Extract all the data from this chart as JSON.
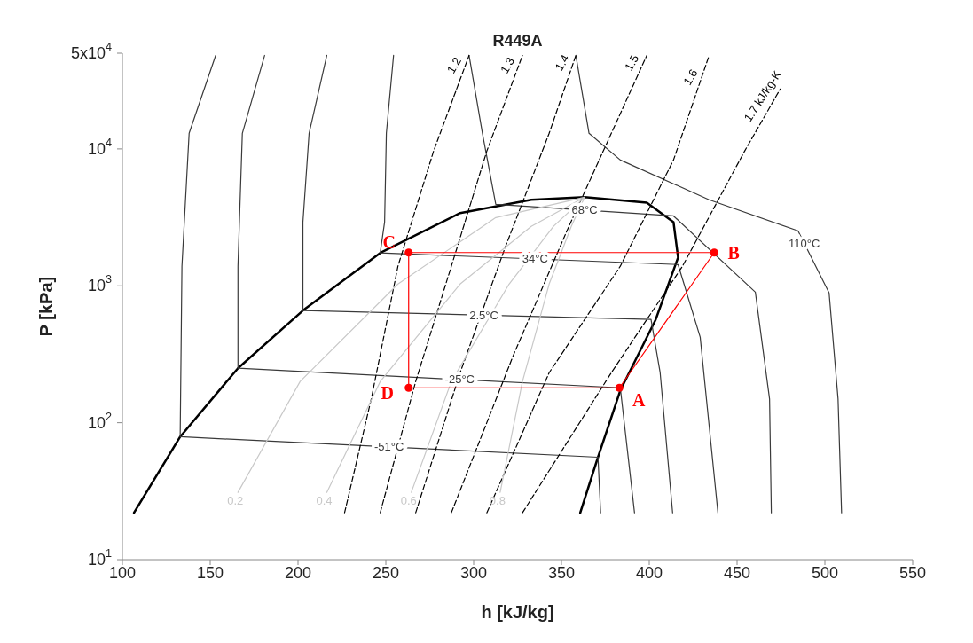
{
  "chart_data": {
    "type": "line",
    "title": "R449A",
    "xlabel": "h [kJ/kg]",
    "ylabel": "P [kPa]",
    "xlim": [
      100,
      550
    ],
    "xticks": [
      100,
      150,
      200,
      250,
      300,
      350,
      400,
      450,
      500,
      550
    ],
    "ylim": [
      10,
      50000
    ],
    "log": "y",
    "yticks": [
      {
        "value": 10,
        "label": "10$^{1}$"
      },
      {
        "value": 100,
        "label": "10$^{2}$"
      },
      {
        "value": 1000,
        "label": "10$^{3}$"
      },
      {
        "value": 10000,
        "label": "10$^{4}$"
      },
      {
        "value": 50000,
        "label": "5x10$^{4}$"
      }
    ],
    "marker": "none",
    "line_style": "solid",
    "series": [
      {
        "color": "#000000",
        "x": [
          106.6,
          132.9,
          165.8,
          202.8,
          246.8,
          292.3,
          332.8,
          363.2,
          398.6,
          413.8,
          416.4,
          403.7,
          383.5,
          370.8,
          360.7
        ],
        "values": [
          22,
          79,
          250,
          660,
          1740,
          3400,
          4250,
          4440,
          4050,
          2920,
          1610,
          568,
          172,
          56,
          22
        ]
      },
      {
        "name": "-51°C",
        "color": "#3a3a3a",
        "x": [
          153.1,
          138,
          133.9,
          132.9,
          370.8,
          372.3
        ],
        "values": [
          48200,
          13000,
          1390,
          79,
          56,
          22
        ]
      },
      {
        "name": "-25°C",
        "color": "#3a3a3a",
        "x": [
          181,
          168.3,
          165.8,
          165.8,
          383.5,
          391.6
        ],
        "values": [
          48200,
          13000,
          1390,
          250,
          180,
          22
        ]
      },
      {
        "name": "2.5°C",
        "color": "#3a3a3a",
        "x": [
          216.4,
          206.3,
          202.8,
          202.8,
          401,
          406.2,
          413.3
        ],
        "values": [
          48200,
          13000,
          2920,
          660,
          568,
          232,
          22
        ]
      },
      {
        "name": "34°C",
        "color": "#3a3a3a",
        "x": [
          254.4,
          250.3,
          249.3,
          246.8,
          416.4,
          429,
          439.1
        ],
        "values": [
          48200,
          13000,
          2920,
          1740,
          1430,
          422,
          22
        ]
      },
      {
        "name": "68°C",
        "color": "#3a3a3a",
        "x": [
          297.4,
          305,
          312.6,
          413.8,
          460.4,
          468.5,
          469.5
        ],
        "values": [
          48200,
          13000,
          3940,
          3240,
          900,
          149,
          22
        ]
      },
      {
        "name": "110°C",
        "color": "#3a3a3a",
        "x": [
          358.2,
          365.7,
          383.5,
          434.1,
          484.7,
          502.4,
          507.5,
          509.5
        ],
        "values": [
          48200,
          13000,
          8300,
          4250,
          2520,
          887,
          149,
          22
        ]
      },
      {
        "name": "1.2",
        "color": "#000000",
        "line_style": "dashed",
        "x": [
          226.5,
          241.7,
          256.9,
          277.2,
          297.4
        ],
        "values": [
          22,
          149,
          1390,
          9640,
          48200
        ]
      },
      {
        "name": "1.3",
        "color": "#000000",
        "line_style": "dashed",
        "x": [
          246.8,
          267,
          287.3,
          307.5,
          327.8
        ],
        "values": [
          22,
          200,
          1390,
          9640,
          48200
        ]
      },
      {
        "name": "1.4",
        "color": "#000000",
        "line_style": "dashed",
        "x": [
          267,
          292.3,
          317.7,
          343,
          358.2
        ],
        "values": [
          22,
          232,
          1870,
          13000,
          48200
        ]
      },
      {
        "name": "1.5",
        "color": "#000000",
        "line_style": "dashed",
        "x": [
          287.3,
          322.7,
          353.1,
          378.4,
          398.6
        ],
        "values": [
          22,
          313,
          2520,
          13000,
          48200
        ]
      },
      {
        "name": "1.6",
        "color": "#000000",
        "line_style": "dashed",
        "x": [
          307.5,
          343,
          383.5,
          413.8,
          434.1
        ],
        "values": [
          22,
          232,
          1390,
          8300,
          48200
        ]
      },
      {
        "name": "1.7 kJ/kg-K",
        "color": "#000000",
        "line_style": "dashed",
        "x": [
          327.8,
          378.4,
          418.9,
          454.3,
          474.6
        ],
        "values": [
          22,
          232,
          1390,
          9640,
          27400
        ]
      },
      {
        "name": "0.2",
        "color": "#c8c8c8",
        "x": [
          165.8,
          201.2,
          256.9,
          312.6,
          363.2
        ],
        "values": [
          31,
          200,
          1030,
          3150,
          4440
        ]
      },
      {
        "name": "0.4",
        "color": "#c8c8c8",
        "x": [
          216.4,
          246.8,
          292.3,
          332.8,
          363.2
        ],
        "values": [
          31,
          200,
          1030,
          2720,
          4440
        ]
      },
      {
        "name": "0.6",
        "color": "#c8c8c8",
        "x": [
          264.5,
          287.3,
          320.2,
          345.5,
          363.2
        ],
        "values": [
          31,
          200,
          1030,
          2720,
          4440
        ]
      },
      {
        "name": "0.8",
        "color": "#c8c8c8",
        "x": [
          315.1,
          327.8,
          343,
          355.6,
          363.2
        ],
        "values": [
          31,
          200,
          1030,
          2720,
          4440
        ]
      },
      {
        "color": "#ff0000",
        "x": [
          263,
          263,
          383,
          437
        ],
        "values": [
          1750,
          180,
          180,
          1750
        ]
      },
      {
        "color": "#ff0000",
        "x": [
          437,
          263
        ],
        "values": [
          1750,
          1750
        ]
      },
      {
        "type": "scatter",
        "color": "#ff0000",
        "marker": "circle",
        "x": [
          383,
          437,
          263,
          263
        ],
        "values": [
          180,
          1750,
          1750,
          180
        ]
      }
    ],
    "annotations": [
      {
        "text": "A",
        "x": 383,
        "y": 180
      },
      {
        "text": "B",
        "x": 437,
        "y": 1750
      },
      {
        "text": "C",
        "x": 263,
        "y": 1750
      },
      {
        "text": "D",
        "x": 263,
        "y": 180
      }
    ]
  }
}
